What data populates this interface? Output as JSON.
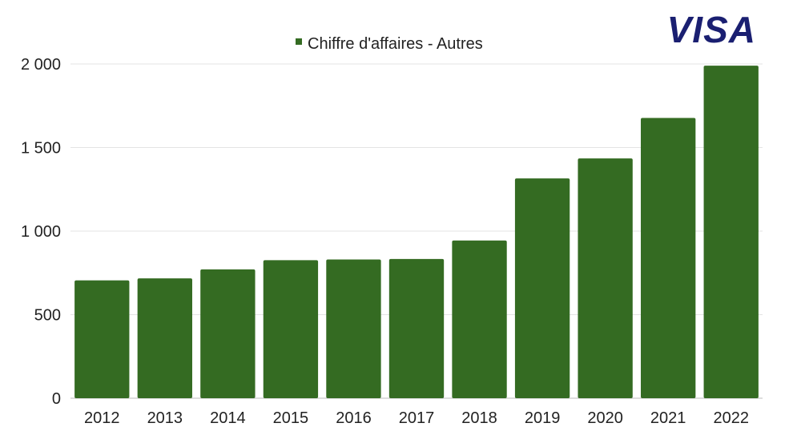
{
  "logo": {
    "text": "VISA",
    "color": "#1A1F71"
  },
  "chart_data": {
    "type": "bar",
    "title": "",
    "xlabel": "",
    "ylabel": "",
    "legend": {
      "position": "top-center",
      "entries": [
        "Chiffre d'affaires - Autres"
      ]
    },
    "categories": [
      "2012",
      "2013",
      "2014",
      "2015",
      "2016",
      "2017",
      "2018",
      "2019",
      "2020",
      "2021",
      "2022"
    ],
    "series": [
      {
        "name": "Chiffre d'affaires - Autres",
        "color": "#346B22",
        "values": [
          705,
          717,
          771,
          826,
          830,
          833,
          944,
          1315,
          1435,
          1677,
          1990
        ]
      }
    ],
    "ylim": [
      0,
      2000
    ],
    "yticks": [
      0,
      500,
      1000,
      1500,
      2000
    ],
    "ytick_labels": [
      "0",
      "500",
      "1 000",
      "1 500",
      "2 000"
    ],
    "grid": true
  }
}
